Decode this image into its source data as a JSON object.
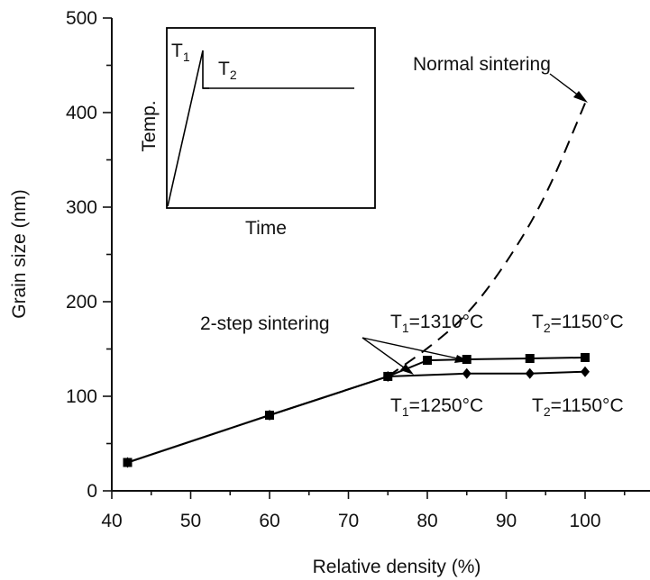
{
  "chart_data": {
    "type": "line",
    "xlabel": "Relative density (%)",
    "ylabel": "Grain size (nm)",
    "xlim": [
      40,
      100
    ],
    "ylim": [
      0,
      500
    ],
    "x_ticks": [
      "40",
      "50",
      "60",
      "70",
      "80",
      "90",
      "100"
    ],
    "y_ticks": [
      "0",
      "100",
      "200",
      "300",
      "400",
      "500"
    ],
    "grid": false,
    "series": [
      {
        "marker": "square",
        "style": "solid",
        "points": [
          [
            42,
            30
          ],
          [
            60,
            80
          ],
          [
            75,
            121
          ],
          [
            80,
            138
          ],
          [
            85,
            139
          ],
          [
            93,
            140
          ],
          [
            100,
            141
          ]
        ]
      },
      {
        "marker": "diamond",
        "style": "solid",
        "points": [
          [
            42,
            30
          ],
          [
            60,
            80
          ],
          [
            75,
            121
          ],
          [
            85,
            124
          ],
          [
            93,
            124
          ],
          [
            100,
            126
          ]
        ]
      },
      {
        "marker": "none",
        "style": "dashed",
        "points": [
          [
            75,
            121
          ],
          [
            80,
            150
          ],
          [
            85,
            185
          ],
          [
            90,
            240
          ],
          [
            95,
            310
          ],
          [
            100,
            410
          ]
        ]
      }
    ],
    "annotations": {
      "normal_sintering": "Normal sintering",
      "two_step": "2-step sintering",
      "upper_t1": "T",
      "upper_t1_sub": "1",
      "upper_t1_val": "=1310°C",
      "upper_t2": "T",
      "upper_t2_sub": "2",
      "upper_t2_val": "=1150°C",
      "lower_t1": "T",
      "lower_t1_sub": "1",
      "lower_t1_val": "=1250°C",
      "lower_t2": "T",
      "lower_t2_sub": "2",
      "lower_t2_val": "=1150°C"
    },
    "inset": {
      "ylabel": "Temp.",
      "xlabel": "Time",
      "t1": "T",
      "t1_sub": "1",
      "t2": "T",
      "t2_sub": "2"
    }
  }
}
